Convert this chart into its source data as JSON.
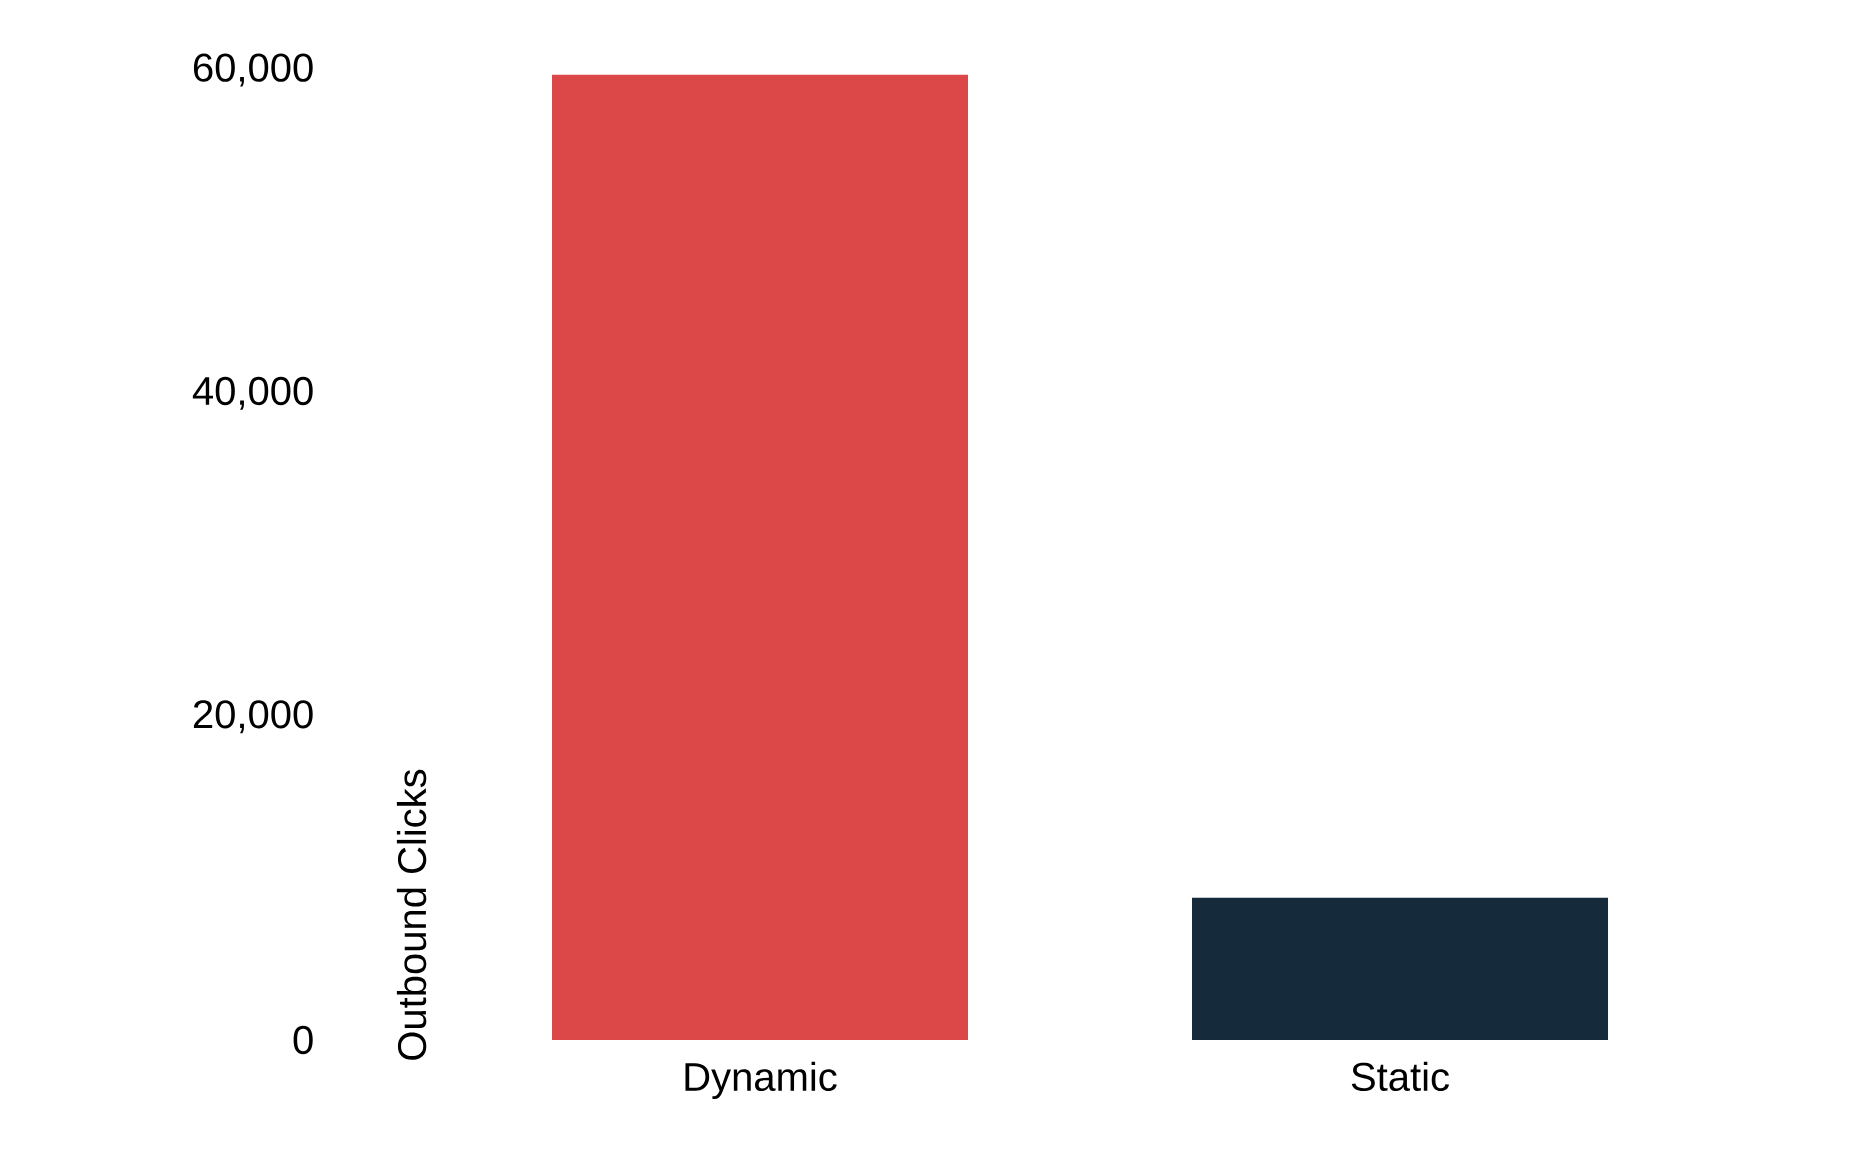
{
  "chart_data": {
    "type": "bar",
    "ylabel": "Outbound Clicks",
    "categories": [
      "Dynamic",
      "Static"
    ],
    "values": [
      59700,
      8800
    ],
    "colors": [
      "#dc4848",
      "#152a3a"
    ],
    "ylim": [
      0,
      60000
    ],
    "yticks": [
      0,
      {
        "value": 20000,
        "label": "20,000"
      },
      {
        "value": 40000,
        "label": "40,000"
      },
      {
        "value": 60000,
        "label": "60,000"
      }
    ]
  }
}
